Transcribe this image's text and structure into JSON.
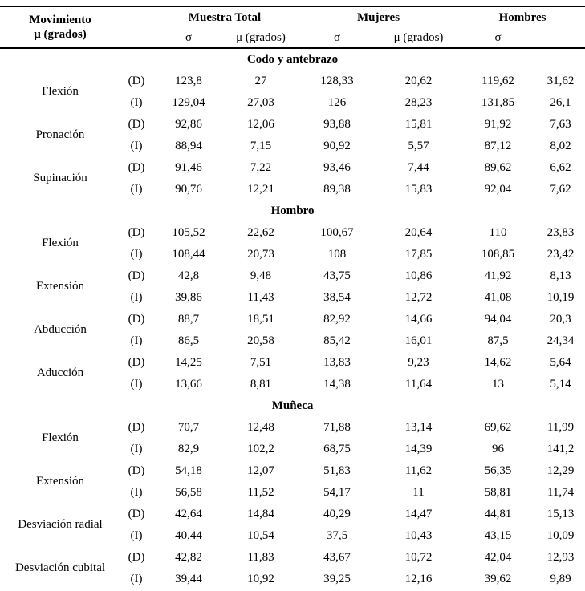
{
  "table": {
    "header": {
      "movement_col": {
        "line1": "Movimiento",
        "line2": "μ (grados)"
      },
      "groups": [
        {
          "label": "Muestra Total",
          "sub": [
            "σ",
            "μ (grados)"
          ]
        },
        {
          "label": "Mujeres",
          "sub": [
            "σ",
            "μ (grados)"
          ]
        },
        {
          "label": "Hombres",
          "sub": [
            "σ",
            ""
          ]
        }
      ]
    },
    "sections": [
      {
        "title": "Codo y antebrazo",
        "rows": [
          {
            "movement": "Flexión",
            "sides": [
              {
                "side": "(D)",
                "values": [
                  "123,8",
                  "27",
                  "128,33",
                  "20,62",
                  "119,62",
                  "31,62"
                ]
              },
              {
                "side": "(I)",
                "values": [
                  "129,04",
                  "27,03",
                  "126",
                  "28,23",
                  "131,85",
                  "26,1"
                ]
              }
            ]
          },
          {
            "movement": "Pronación",
            "sides": [
              {
                "side": "(D)",
                "values": [
                  "92,86",
                  "12,06",
                  "93,88",
                  "15,81",
                  "91,92",
                  "7,63"
                ]
              },
              {
                "side": "(I)",
                "values": [
                  "88,94",
                  "7,15",
                  "90,92",
                  "5,57",
                  "87,12",
                  "8,02"
                ]
              }
            ]
          },
          {
            "movement": "Supinación",
            "sides": [
              {
                "side": "(D)",
                "values": [
                  "91,46",
                  "7,22",
                  "93,46",
                  "7,44",
                  "89,62",
                  "6,62"
                ]
              },
              {
                "side": "(I)",
                "values": [
                  "90,76",
                  "12,21",
                  "89,38",
                  "15,83",
                  "92,04",
                  "7,62"
                ]
              }
            ]
          }
        ]
      },
      {
        "title": "Hombro",
        "rows": [
          {
            "movement": "Flexión",
            "sides": [
              {
                "side": "(D)",
                "values": [
                  "105,52",
                  "22,62",
                  "100,67",
                  "20,64",
                  "110",
                  "23,83"
                ]
              },
              {
                "side": "(I)",
                "values": [
                  "108,44",
                  "20,73",
                  "108",
                  "17,85",
                  "108,85",
                  "23,42"
                ]
              }
            ]
          },
          {
            "movement": "Extensión",
            "sides": [
              {
                "side": "(D)",
                "values": [
                  "42,8",
                  "9,48",
                  "43,75",
                  "10,86",
                  "41,92",
                  "8,13"
                ]
              },
              {
                "side": "(I)",
                "values": [
                  "39,86",
                  "11,43",
                  "38,54",
                  "12,72",
                  "41,08",
                  "10,19"
                ]
              }
            ]
          },
          {
            "movement": "Abducción",
            "sides": [
              {
                "side": "(D)",
                "values": [
                  "88,7",
                  "18,51",
                  "82,92",
                  "14,66",
                  "94,04",
                  "20,3"
                ]
              },
              {
                "side": "(I)",
                "values": [
                  "86,5",
                  "20,58",
                  "85,42",
                  "16,01",
                  "87,5",
                  "24,34"
                ]
              }
            ]
          },
          {
            "movement": "Aducción",
            "sides": [
              {
                "side": "(D)",
                "values": [
                  "14,25",
                  "7,51",
                  "13,83",
                  "9,23",
                  "14,62",
                  "5,64"
                ]
              },
              {
                "side": "(I)",
                "values": [
                  "13,66",
                  "8,81",
                  "14,38",
                  "11,64",
                  "13",
                  "5,14"
                ]
              }
            ]
          }
        ]
      },
      {
        "title": "Muñeca",
        "rows": [
          {
            "movement": "Flexión",
            "sides": [
              {
                "side": "(D)",
                "values": [
                  "70,7",
                  "12,48",
                  "71,88",
                  "13,14",
                  "69,62",
                  "11,99"
                ]
              },
              {
                "side": "(I)",
                "values": [
                  "82,9",
                  "102,2",
                  "68,75",
                  "14,39",
                  "96",
                  "141,2"
                ]
              }
            ]
          },
          {
            "movement": "Extensión",
            "sides": [
              {
                "side": "(D)",
                "values": [
                  "54,18",
                  "12,07",
                  "51,83",
                  "11,62",
                  "56,35",
                  "12,29"
                ]
              },
              {
                "side": "(I)",
                "values": [
                  "56,58",
                  "11,52",
                  "54,17",
                  "11",
                  "58,81",
                  "11,74"
                ]
              }
            ]
          },
          {
            "movement": "Desviación radial",
            "sides": [
              {
                "side": "(D)",
                "values": [
                  "42,64",
                  "14,84",
                  "40,29",
                  "14,47",
                  "44,81",
                  "15,13"
                ]
              },
              {
                "side": "(I)",
                "values": [
                  "40,44",
                  "10,54",
                  "37,5",
                  "10,43",
                  "43,15",
                  "10,09"
                ]
              }
            ]
          },
          {
            "movement": "Desviación cubital",
            "sides": [
              {
                "side": "(D)",
                "values": [
                  "42,82",
                  "11,83",
                  "43,67",
                  "10,72",
                  "42,04",
                  "12,93"
                ]
              },
              {
                "side": "(I)",
                "values": [
                  "39,44",
                  "10,92",
                  "39,25",
                  "12,16",
                  "39,62",
                  "9,89"
                ]
              }
            ]
          }
        ]
      }
    ]
  }
}
